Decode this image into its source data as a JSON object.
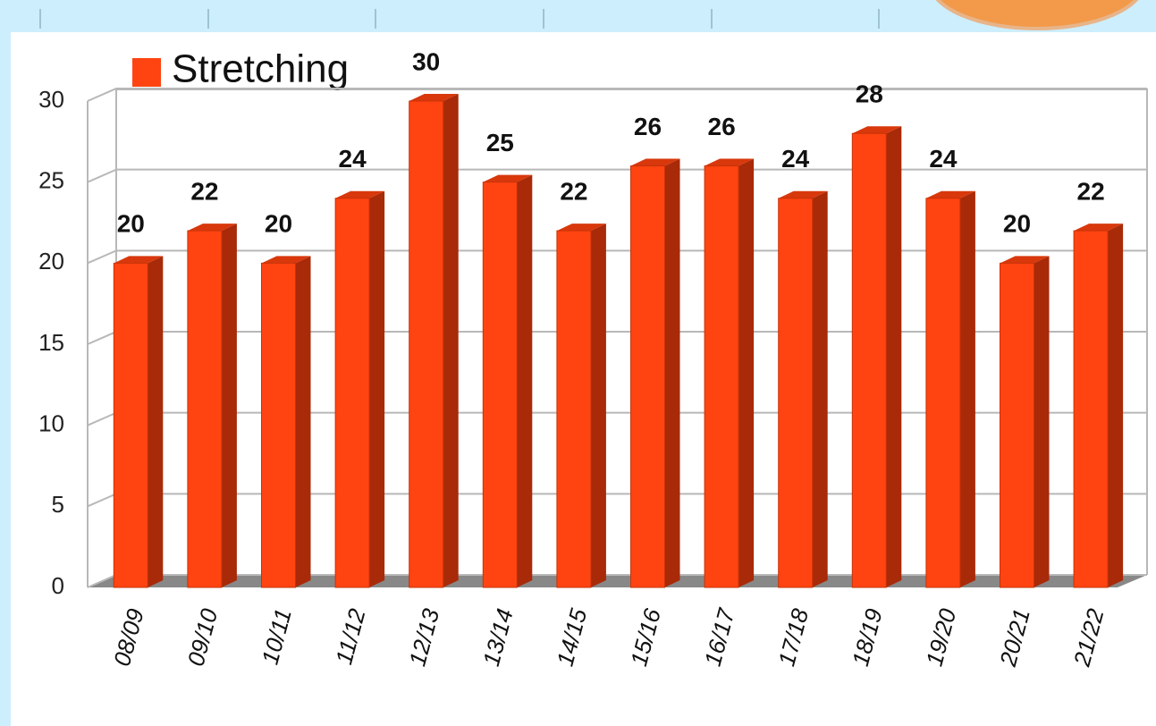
{
  "chart_data": {
    "type": "bar",
    "legend": "Stretching",
    "categories": [
      "08/09",
      "09/10",
      "10/11",
      "11/12",
      "12/13",
      "13/14",
      "14/15",
      "15/16",
      "16/17",
      "17/18",
      "18/19",
      "19/20",
      "20/21",
      "21/22"
    ],
    "values": [
      20,
      22,
      20,
      24,
      30,
      25,
      22,
      26,
      26,
      24,
      28,
      24,
      20,
      22
    ],
    "color": "#ff4411",
    "ylim": [
      0,
      30
    ],
    "yticks": [
      0,
      5,
      10,
      15,
      20,
      25,
      30
    ],
    "grid": true
  }
}
